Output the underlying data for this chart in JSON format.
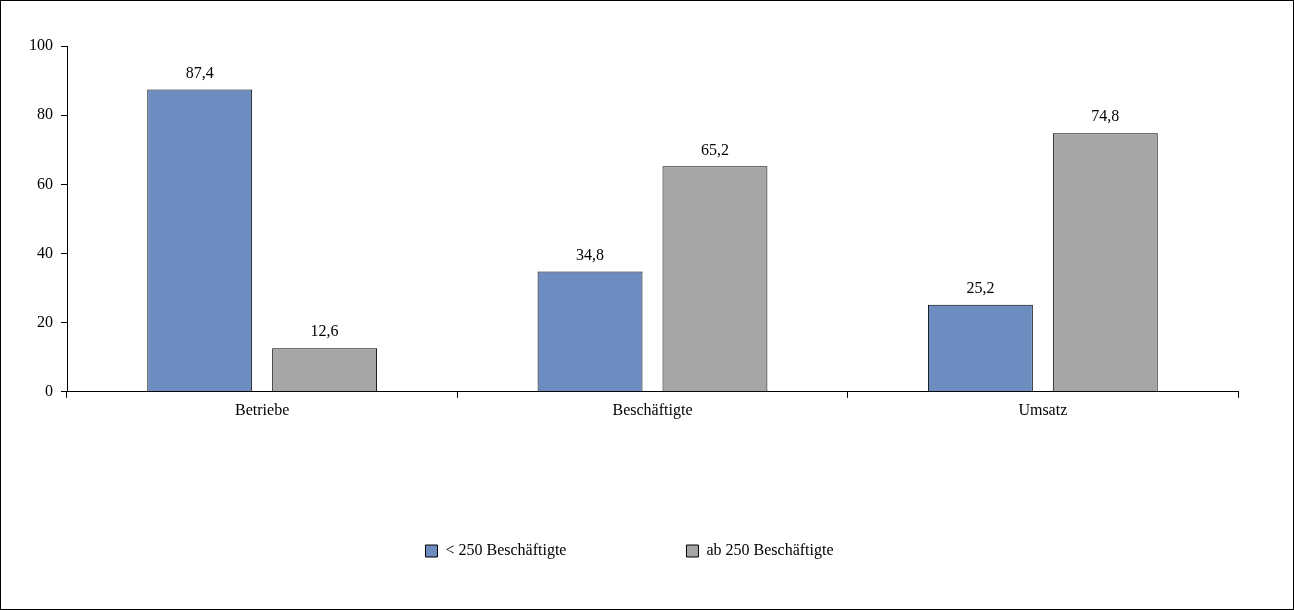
{
  "chart_data": {
    "type": "bar",
    "categories": [
      "Betriebe",
      "Beschäftigte",
      "Umsatz"
    ],
    "series": [
      {
        "name": "< 250 Beschäftigte",
        "color": "#6d8dc0",
        "values": [
          87.4,
          34.8,
          25.2
        ],
        "value_labels": [
          "87,4",
          "34,8",
          "25,2"
        ]
      },
      {
        "name": "ab 250 Beschäftigte",
        "color": "#a6a6a6",
        "values": [
          12.6,
          65.2,
          74.8
        ],
        "value_labels": [
          "12,6",
          "65,2",
          "74,8"
        ]
      }
    ],
    "ylim": [
      0,
      100
    ],
    "yticks": [
      0,
      20,
      40,
      60,
      80,
      100
    ],
    "grid": false,
    "legend": "bottom"
  }
}
